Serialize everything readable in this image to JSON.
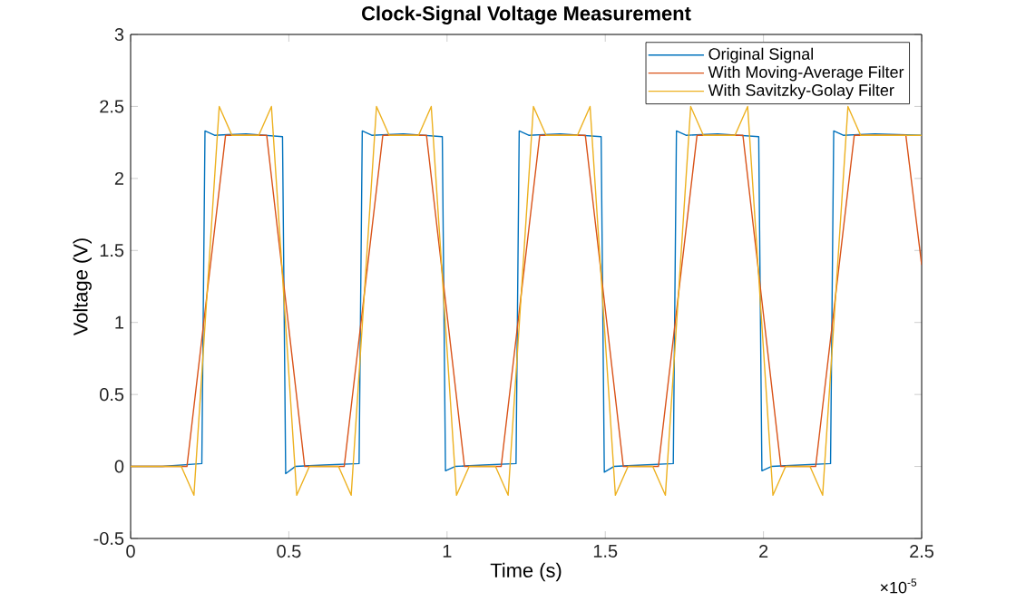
{
  "chart_data": {
    "type": "line",
    "title": "Clock-Signal Voltage Measurement",
    "xlabel": "Time (s)",
    "ylabel": "Voltage (V)",
    "annotations": [
      "×10$^{-5}$"
    ],
    "xlim": [
      0,
      2.5
    ],
    "ylim": [
      -0.5,
      3
    ],
    "xticks": [
      0,
      0.5,
      1,
      1.5,
      2,
      2.5
    ],
    "yticks": [
      -0.5,
      0,
      0.5,
      1,
      1.5,
      2,
      2.5,
      3
    ],
    "grid": false,
    "legend": "top right",
    "marker": "none",
    "line_style": "solid",
    "series": [
      {
        "name": "Original Signal",
        "color": "#0072bd",
        "x": [
          0,
          0.1,
          0.225,
          0.235,
          0.265,
          0.365,
          0.48,
          0.49,
          0.52,
          0.61,
          0.722,
          0.732,
          0.762,
          0.862,
          0.985,
          0.995,
          1.025,
          1.115,
          1.218,
          1.228,
          1.258,
          1.358,
          1.487,
          1.497,
          1.527,
          1.617,
          1.715,
          1.725,
          1.755,
          1.855,
          1.985,
          1.995,
          2.025,
          2.115,
          2.212,
          2.222,
          2.252,
          2.352,
          2.5
        ],
        "values": [
          0,
          0,
          0.02,
          2.33,
          2.3,
          2.31,
          2.29,
          -0.05,
          0,
          0.01,
          0.02,
          2.33,
          2.3,
          2.31,
          2.29,
          -0.03,
          0,
          0.01,
          0.02,
          2.33,
          2.3,
          2.31,
          2.29,
          -0.04,
          0,
          0.01,
          0.02,
          2.33,
          2.3,
          2.31,
          2.29,
          -0.03,
          0,
          0.01,
          0.02,
          2.33,
          2.3,
          2.31,
          2.3
        ]
      },
      {
        "name": "With Moving-Average Filter",
        "color": "#d95319",
        "x": [
          0,
          0.178,
          0.3,
          0.43,
          0.55,
          0.675,
          0.797,
          0.935,
          1.055,
          1.171,
          1.293,
          1.437,
          1.557,
          1.668,
          1.79,
          1.935,
          2.055,
          2.165,
          2.287,
          2.45,
          2.5
        ],
        "values": [
          0,
          0,
          2.3,
          2.3,
          0,
          0,
          2.3,
          2.3,
          0,
          0,
          2.3,
          2.3,
          0,
          0,
          2.3,
          2.3,
          0,
          0,
          2.3,
          2.3,
          1.4
        ]
      },
      {
        "name": "With Savitzky-Golay Filter",
        "color": "#edb120",
        "x": [
          0,
          0.16,
          0.2,
          0.28,
          0.32,
          0.405,
          0.445,
          0.525,
          0.565,
          0.657,
          0.697,
          0.777,
          0.817,
          0.91,
          0.95,
          1.03,
          1.07,
          1.153,
          1.193,
          1.273,
          1.313,
          1.412,
          1.452,
          1.532,
          1.572,
          1.65,
          1.69,
          1.77,
          1.81,
          1.91,
          1.95,
          2.03,
          2.07,
          2.147,
          2.187,
          2.267,
          2.307,
          2.5
        ],
        "values": [
          0,
          0,
          -0.2,
          2.5,
          2.3,
          2.3,
          2.5,
          -0.2,
          0,
          0,
          -0.2,
          2.5,
          2.3,
          2.3,
          2.5,
          -0.2,
          0,
          0,
          -0.2,
          2.5,
          2.3,
          2.3,
          2.5,
          -0.2,
          0,
          0,
          -0.2,
          2.5,
          2.3,
          2.3,
          2.5,
          -0.2,
          0,
          0,
          -0.2,
          2.5,
          2.3,
          2.3
        ]
      }
    ]
  }
}
